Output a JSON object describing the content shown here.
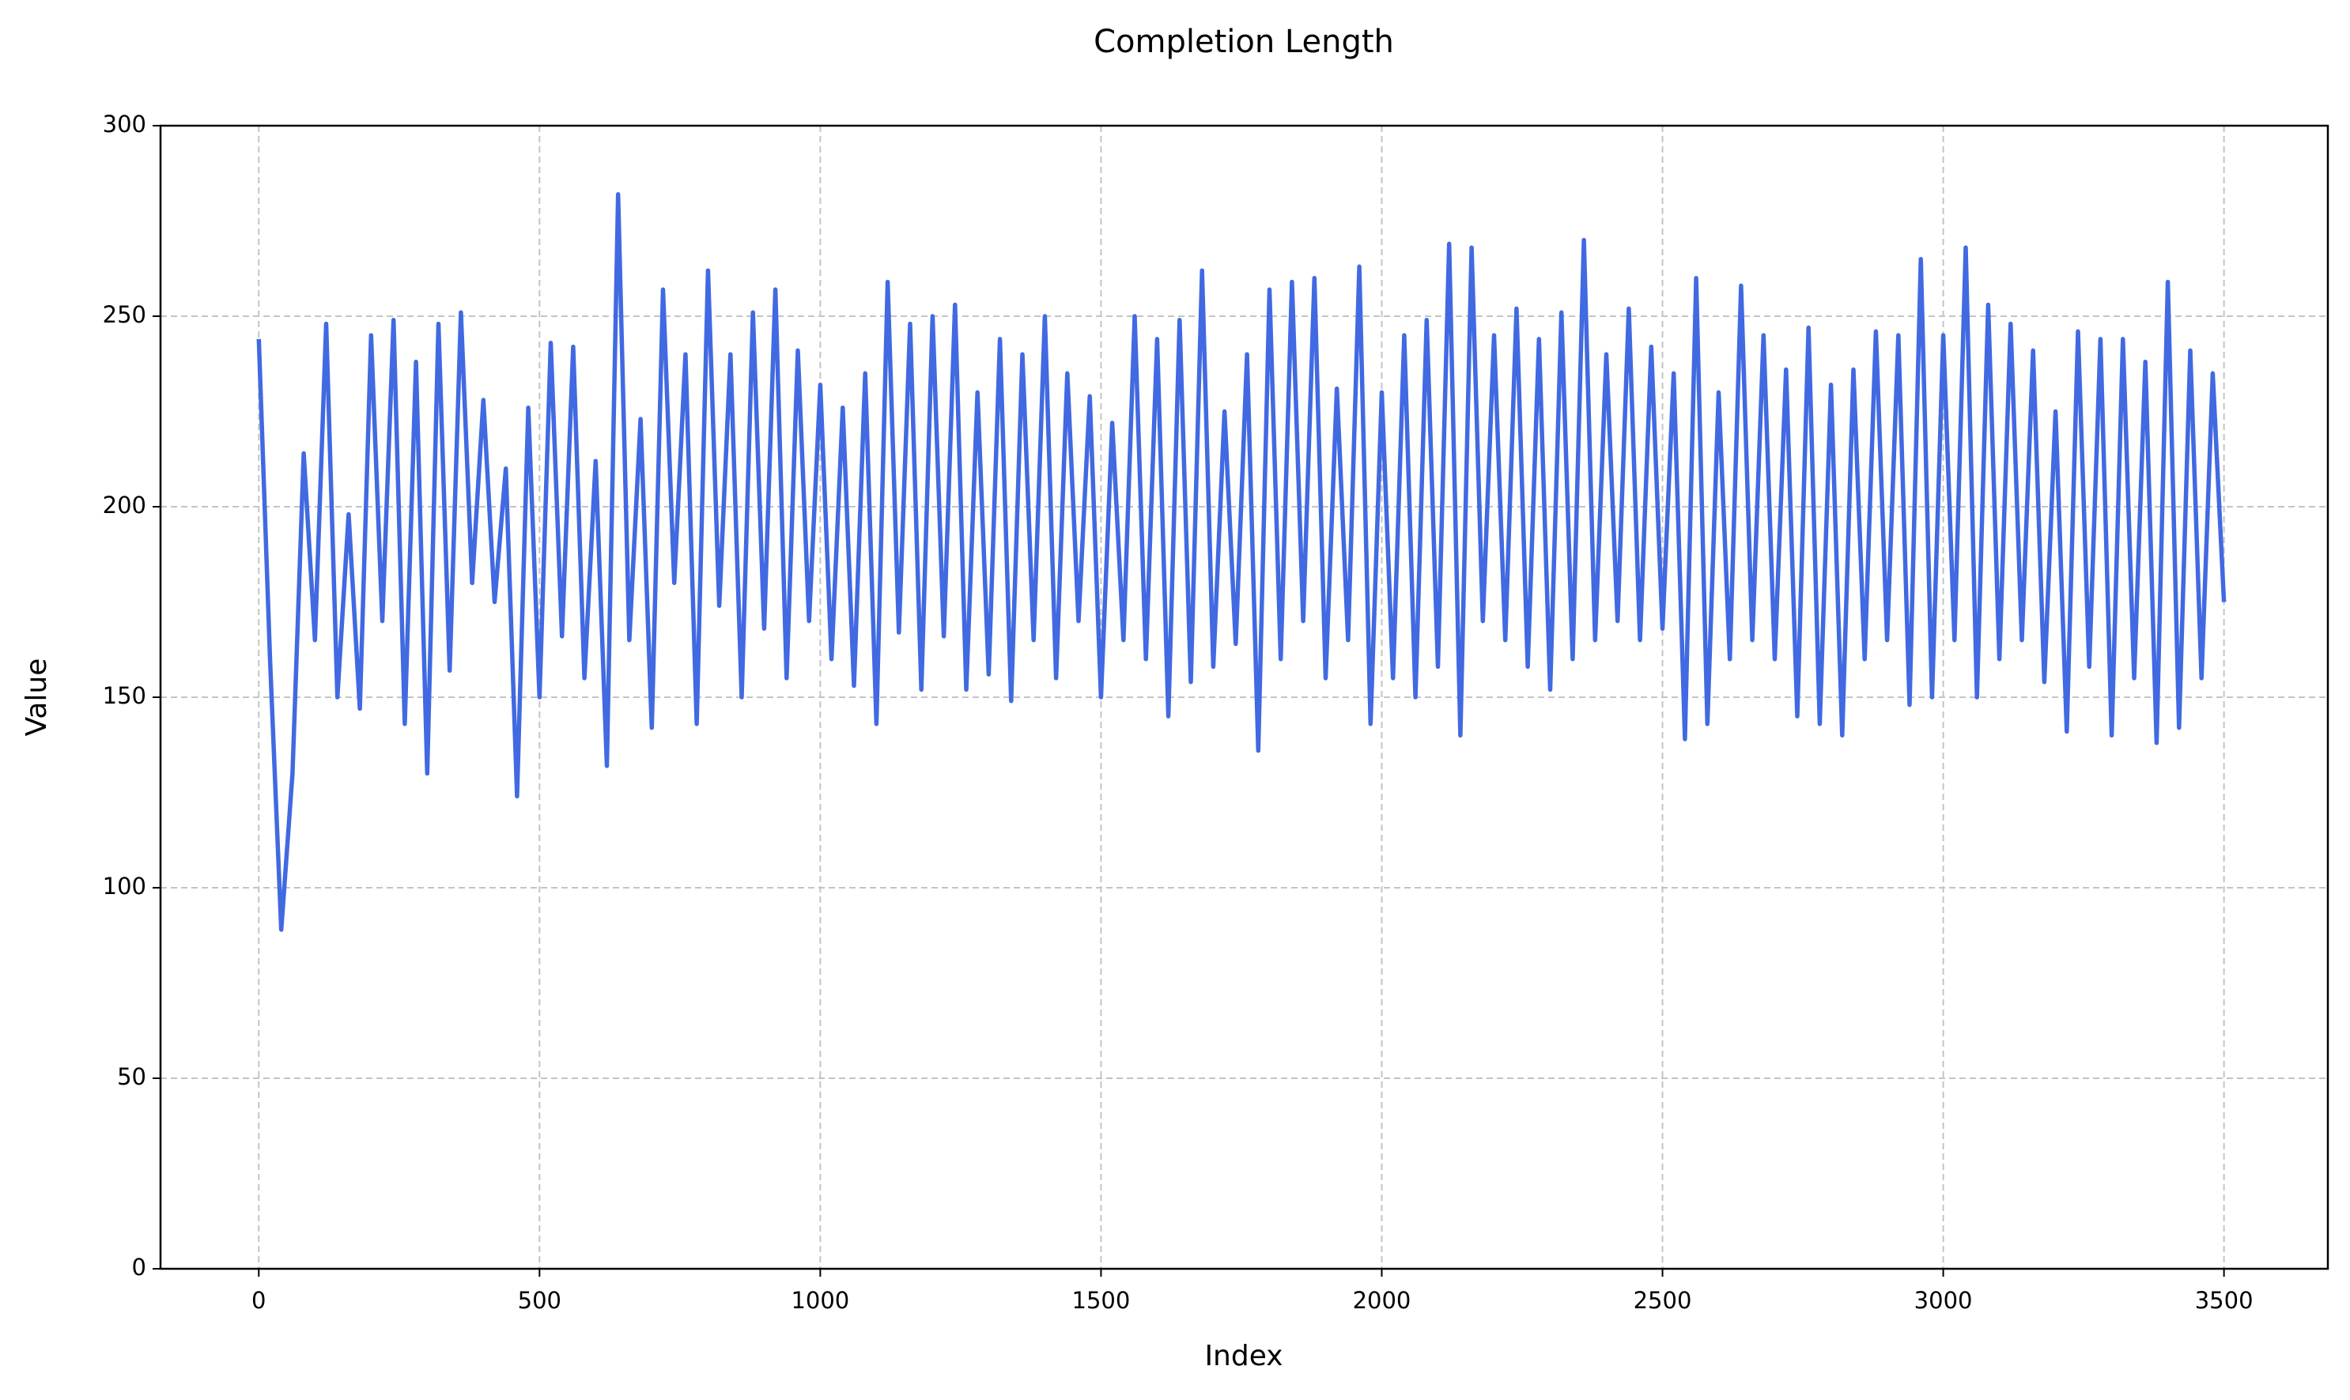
{
  "chart_data": {
    "type": "line",
    "title": "Completion Length",
    "x_label": "Index",
    "y_label": "Value",
    "x": [
      0,
      20,
      40,
      60,
      80,
      100,
      120,
      140,
      160,
      180,
      200,
      220,
      240,
      260,
      280,
      300,
      320,
      340,
      360,
      380,
      400,
      420,
      440,
      460,
      480,
      500,
      520,
      540,
      560,
      580,
      600,
      620,
      640,
      660,
      680,
      700,
      720,
      740,
      760,
      780,
      800,
      820,
      840,
      860,
      880,
      900,
      920,
      940,
      960,
      980,
      1000,
      1020,
      1040,
      1060,
      1080,
      1100,
      1120,
      1140,
      1160,
      1180,
      1200,
      1220,
      1240,
      1260,
      1280,
      1300,
      1320,
      1340,
      1360,
      1380,
      1400,
      1420,
      1440,
      1460,
      1480,
      1500,
      1520,
      1540,
      1560,
      1580,
      1600,
      1620,
      1640,
      1660,
      1680,
      1700,
      1720,
      1740,
      1760,
      1780,
      1800,
      1820,
      1840,
      1860,
      1880,
      1900,
      1920,
      1940,
      1960,
      1980,
      2000,
      2020,
      2040,
      2060,
      2080,
      2100,
      2120,
      2140,
      2160,
      2180,
      2200,
      2220,
      2240,
      2260,
      2280,
      2300,
      2320,
      2340,
      2360,
      2380,
      2400,
      2420,
      2440,
      2460,
      2480,
      2500,
      2520,
      2540,
      2560,
      2580,
      2600,
      2620,
      2640,
      2660,
      2680,
      2700,
      2720,
      2740,
      2760,
      2780,
      2800,
      2820,
      2840,
      2860,
      2880,
      2900,
      2920,
      2940,
      2960,
      2980,
      3000,
      3020,
      3040,
      3060,
      3080,
      3100,
      3120,
      3140,
      3160,
      3180,
      3200,
      3220,
      3240,
      3260,
      3280,
      3300,
      3320,
      3340,
      3360,
      3380,
      3400,
      3420,
      3440,
      3460,
      3480,
      3500
    ],
    "values": [
      244,
      160,
      89,
      130,
      214,
      165,
      248,
      150,
      198,
      147,
      245,
      170,
      249,
      143,
      238,
      130,
      248,
      157,
      251,
      180,
      228,
      175,
      210,
      124,
      226,
      150,
      243,
      166,
      242,
      155,
      212,
      132,
      282,
      165,
      223,
      142,
      257,
      180,
      240,
      143,
      262,
      174,
      240,
      150,
      251,
      168,
      257,
      155,
      241,
      170,
      232,
      160,
      226,
      153,
      235,
      143,
      259,
      167,
      248,
      152,
      250,
      166,
      253,
      152,
      230,
      156,
      244,
      149,
      240,
      165,
      250,
      155,
      235,
      170,
      229,
      150,
      222,
      165,
      250,
      160,
      244,
      145,
      249,
      154,
      262,
      158,
      225,
      164,
      240,
      136,
      257,
      160,
      259,
      170,
      260,
      155,
      231,
      165,
      263,
      143,
      230,
      155,
      245,
      150,
      249,
      158,
      269,
      140,
      268,
      170,
      245,
      165,
      252,
      158,
      244,
      152,
      251,
      160,
      270,
      165,
      240,
      170,
      252,
      165,
      242,
      168,
      235,
      139,
      260,
      143,
      230,
      160,
      258,
      165,
      245,
      160,
      236,
      145,
      247,
      143,
      232,
      140,
      236,
      160,
      246,
      165,
      245,
      148,
      265,
      150,
      245,
      165,
      268,
      150,
      253,
      160,
      248,
      165,
      241,
      154,
      225,
      141,
      246,
      158,
      244,
      140,
      244,
      155,
      238,
      138,
      259,
      142,
      241,
      155,
      235,
      175
    ],
    "color": "#4169e1",
    "xlim": [
      -175,
      3685
    ],
    "ylim": [
      0,
      300
    ],
    "xticks": [
      0,
      500,
      1000,
      1500,
      2000,
      2500,
      3000,
      3500
    ],
    "yticks": [
      0,
      50,
      100,
      150,
      200,
      250,
      300
    ],
    "grid": true
  }
}
